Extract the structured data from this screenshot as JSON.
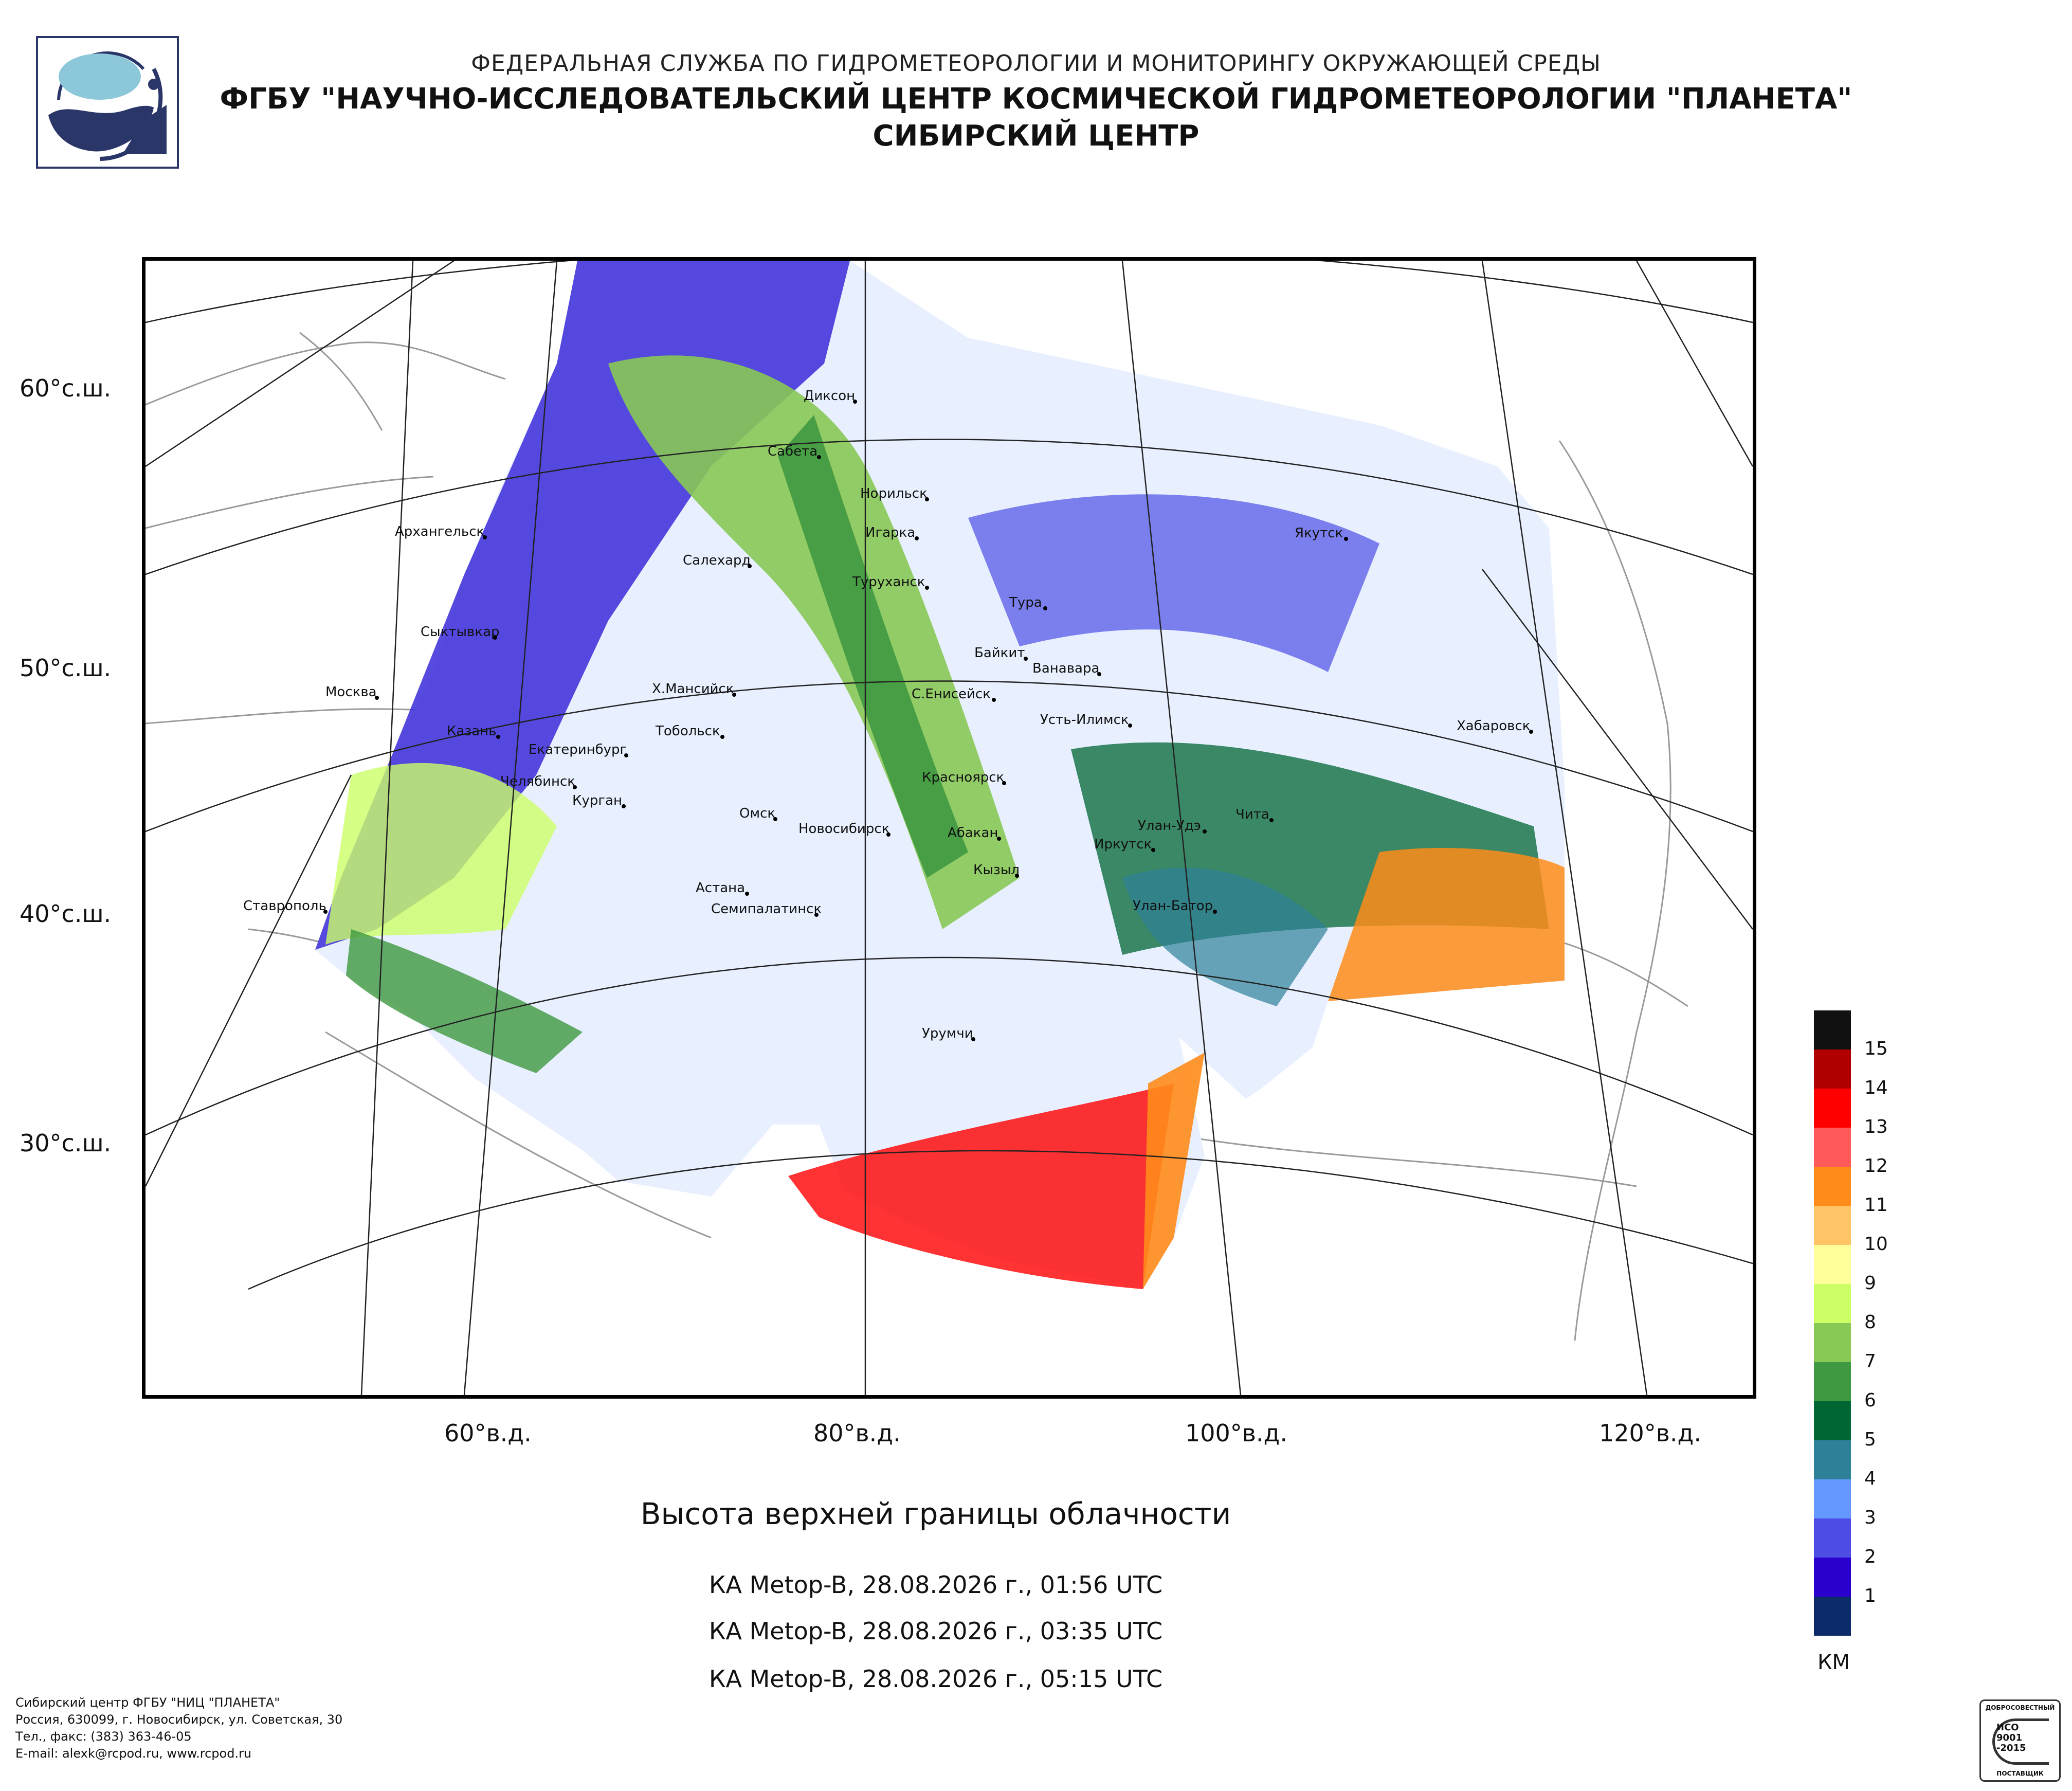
{
  "header": {
    "line1": "ФЕДЕРАЛЬНАЯ СЛУЖБА ПО ГИДРОМЕТЕОРОЛОГИИ И МОНИТОРИНГУ ОКРУЖАЮЩЕЙ СРЕДЫ",
    "line2": "ФГБУ \"НАУЧНО-ИССЛЕДОВАТЕЛЬСКИЙ ЦЕНТР КОСМИЧЕСКОЙ ГИДРОМЕТЕОРОЛОГИИ \"ПЛАНЕТА\"",
    "line3": "СИБИРСКИЙ ЦЕНТР"
  },
  "map": {
    "lat_labels": [
      "60°с.ш.",
      "50°с.ш.",
      "40°с.ш.",
      "30°с.ш."
    ],
    "lon_labels": [
      "60°в.д.",
      "80°в.д.",
      "100°в.д.",
      "120°в.д."
    ],
    "cities": [
      "Диксон",
      "Сабета",
      "Норильск",
      "Архангельск",
      "Игарка",
      "Салехард",
      "Туруханск",
      "Якутск",
      "Тура",
      "Сыктывкар",
      "Байкит",
      "Ванавара",
      "Москва",
      "Х.Мансийск",
      "С.Енисейск",
      "Усть-Илимск",
      "Казань",
      "Тобольск",
      "Хабаровск",
      "Екатеринбург",
      "Челябинск",
      "Красноярск",
      "Курган",
      "Чита",
      "Омск",
      "Новосибирск",
      "Абакан",
      "Улан-Удэ",
      "Иркутск",
      "Кызыл",
      "Ставрополь",
      "Астана",
      "Семипалатинск",
      "Улан-Батор",
      "Урумчи"
    ]
  },
  "title": "Высота верхней границы облачности",
  "passes": [
    "КА Metop-B, 28.08.2026 г., 01:56 UTC",
    "КА Metop-B, 28.08.2026 г., 03:35 UTC",
    "КА Metop-B, 28.08.2026 г., 05:15 UTC"
  ],
  "legend": {
    "unit": "КМ",
    "labels": [
      "15",
      "14",
      "13",
      "12",
      "11",
      "10",
      "9",
      "8",
      "7",
      "6",
      "5",
      "4",
      "3",
      "2",
      "1"
    ],
    "colors": [
      "#111111",
      "#b00000",
      "#ff0000",
      "#ff5a5a",
      "#ff8c1a",
      "#ffc466",
      "#ffff99",
      "#ccff66",
      "#88c855",
      "#3f9940",
      "#006633",
      "#2e8099",
      "#6699ff",
      "#4d4de6",
      "#2a00cc",
      "#0b2b6b"
    ]
  },
  "footer": {
    "line1": "Сибирский центр ФГБУ \"НИЦ \"ПЛАНЕТА\"",
    "line2": "Россия, 630099, г. Новосибирск, ул. Советская, 30",
    "line3": "Тел., факс: (383) 363-46-05",
    "line4": "E-mail: alexk@rcpod.ru, www.rcpod.ru"
  },
  "iso_badge": {
    "top": "ДОБРОСОВЕСТНЫЙ",
    "mid1": "ИСО",
    "mid2": "9001",
    "mid3": "-2015",
    "bottom": "ПОСТАВЩИК"
  }
}
